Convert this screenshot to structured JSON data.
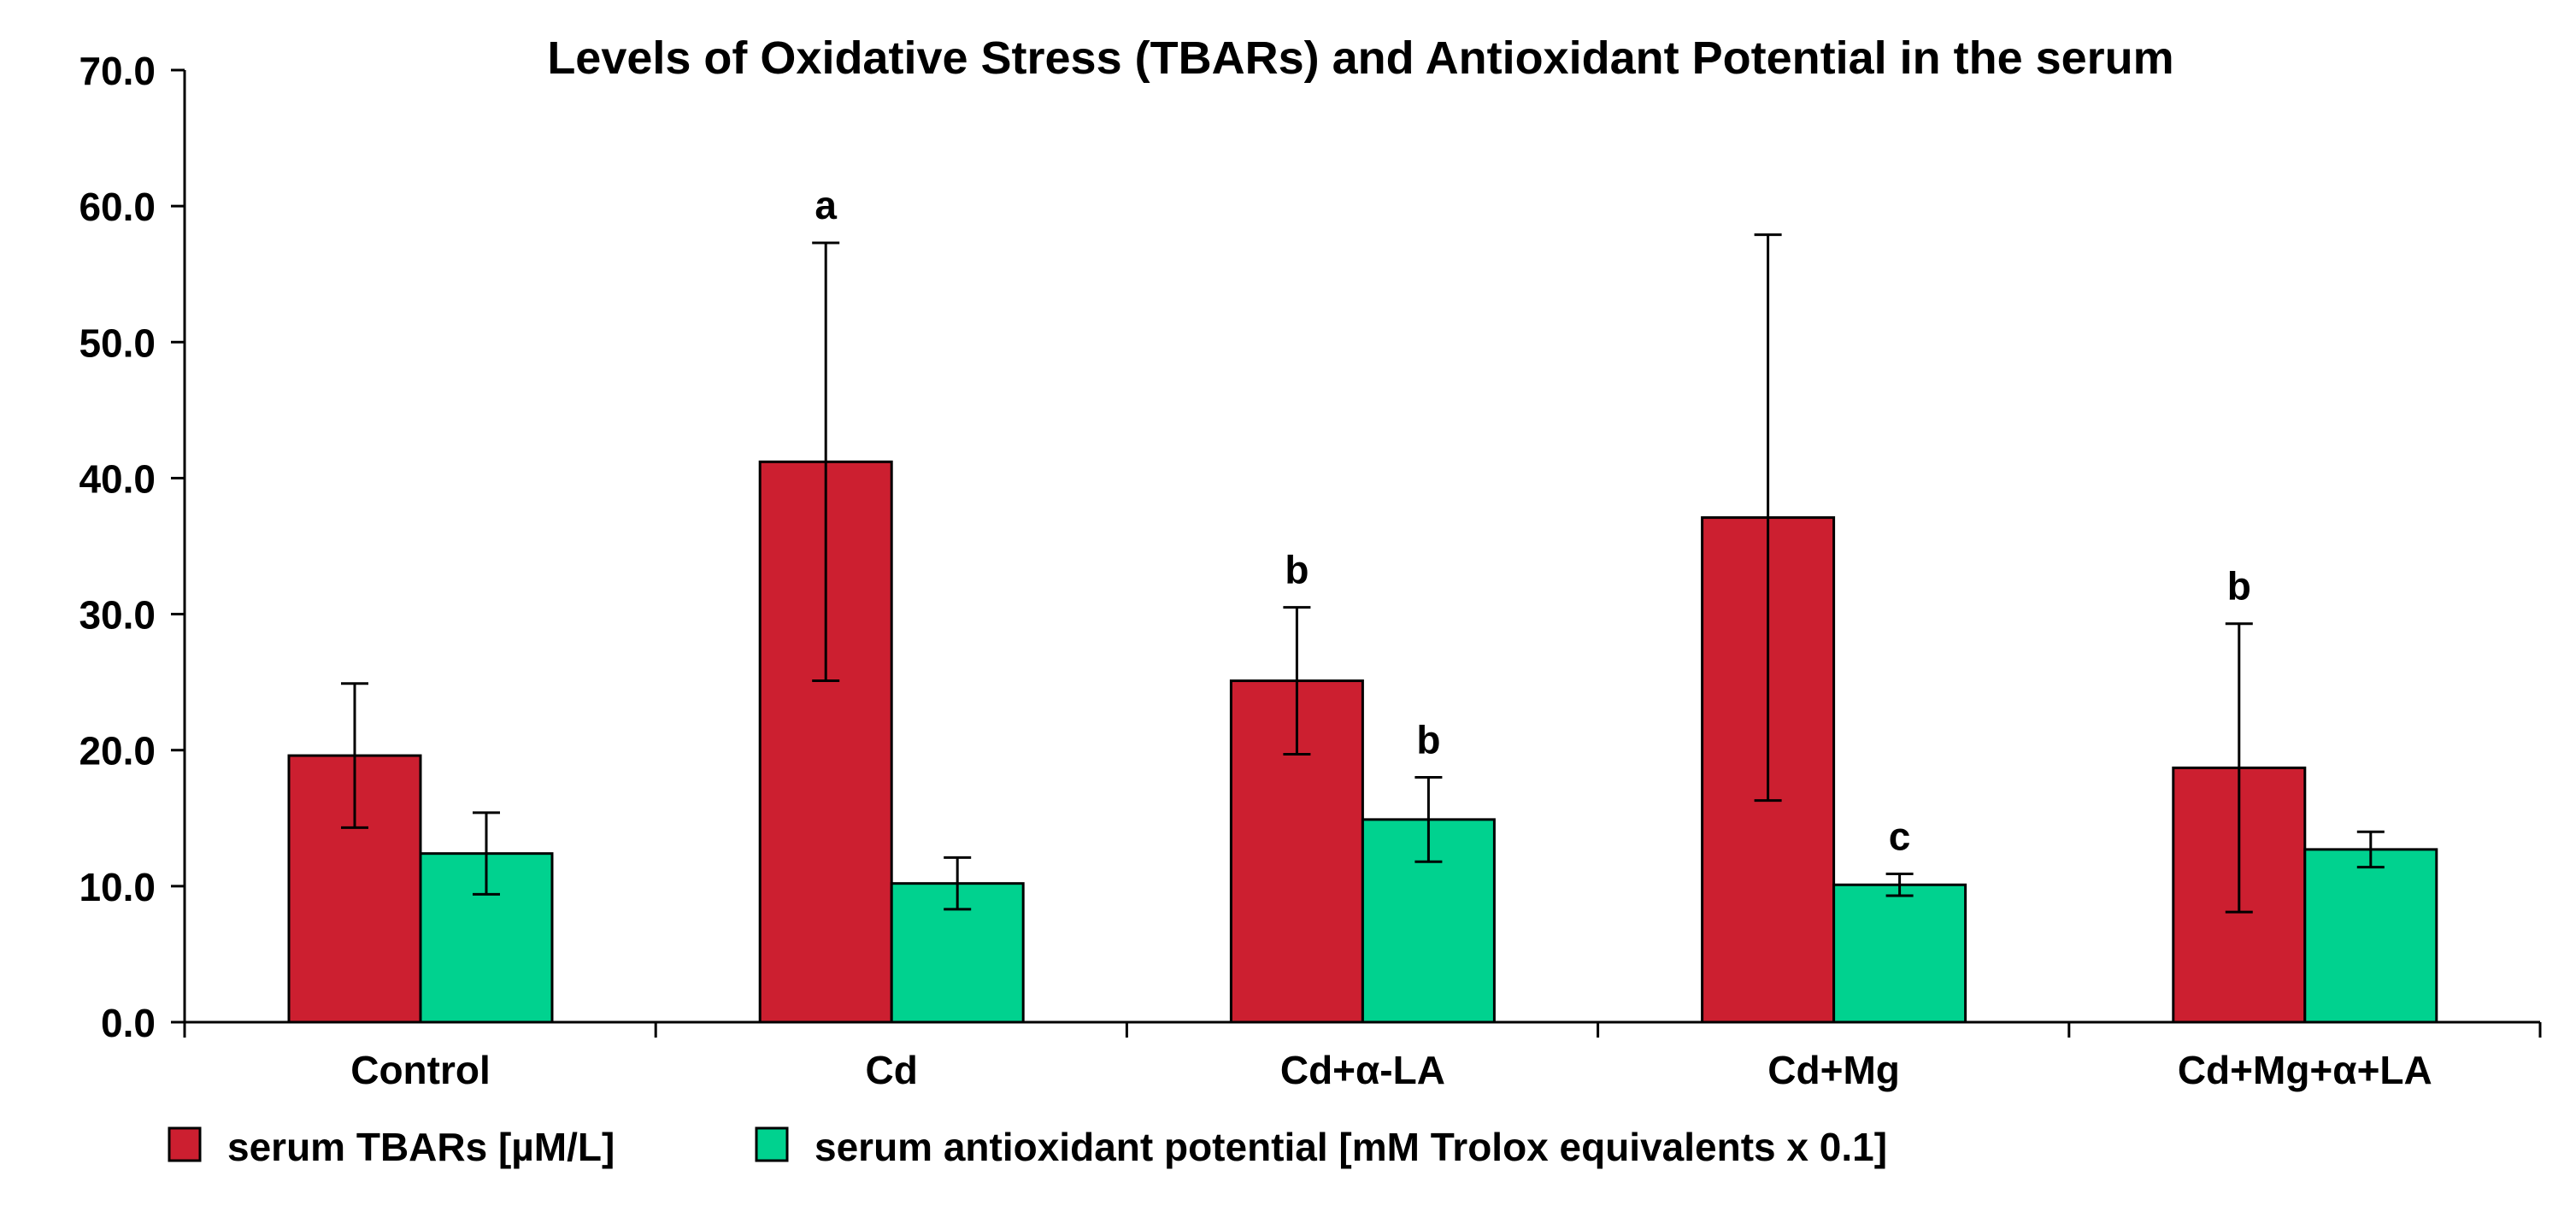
{
  "chart_data": {
    "type": "bar",
    "title": "Levels of Oxidative Stress  (TBARs) and Antioxidant Potential in the serum",
    "xlabel": "",
    "ylabel": "",
    "categories": [
      "Control",
      "Cd",
      "Cd+α-LA",
      "Cd+Mg",
      "Cd+Mg+α+LA"
    ],
    "ylim": [
      0,
      70
    ],
    "yticks": [
      "0.0",
      "10.0",
      "20.0",
      "30.0",
      "40.0",
      "50.0",
      "60.0",
      "70.0"
    ],
    "grid": false,
    "legend_position": "bottom",
    "series": [
      {
        "name": "serum  TBARs [µM/L]",
        "color": "#cc1f30",
        "values": [
          19.6,
          41.2,
          25.1,
          37.1,
          18.7
        ],
        "errors": [
          5.3,
          16.1,
          5.4,
          20.8,
          10.6
        ],
        "annotations": [
          "",
          "a",
          "b",
          "",
          "b"
        ]
      },
      {
        "name": "serum antioxidant potential [mM Trolox equivalents x 0.1]",
        "color": "#00d28f",
        "values": [
          12.4,
          10.2,
          14.9,
          10.1,
          12.7
        ],
        "errors": [
          3.0,
          1.9,
          3.1,
          0.8,
          1.3
        ],
        "annotations": [
          "",
          "",
          "b",
          "c",
          ""
        ]
      }
    ]
  }
}
